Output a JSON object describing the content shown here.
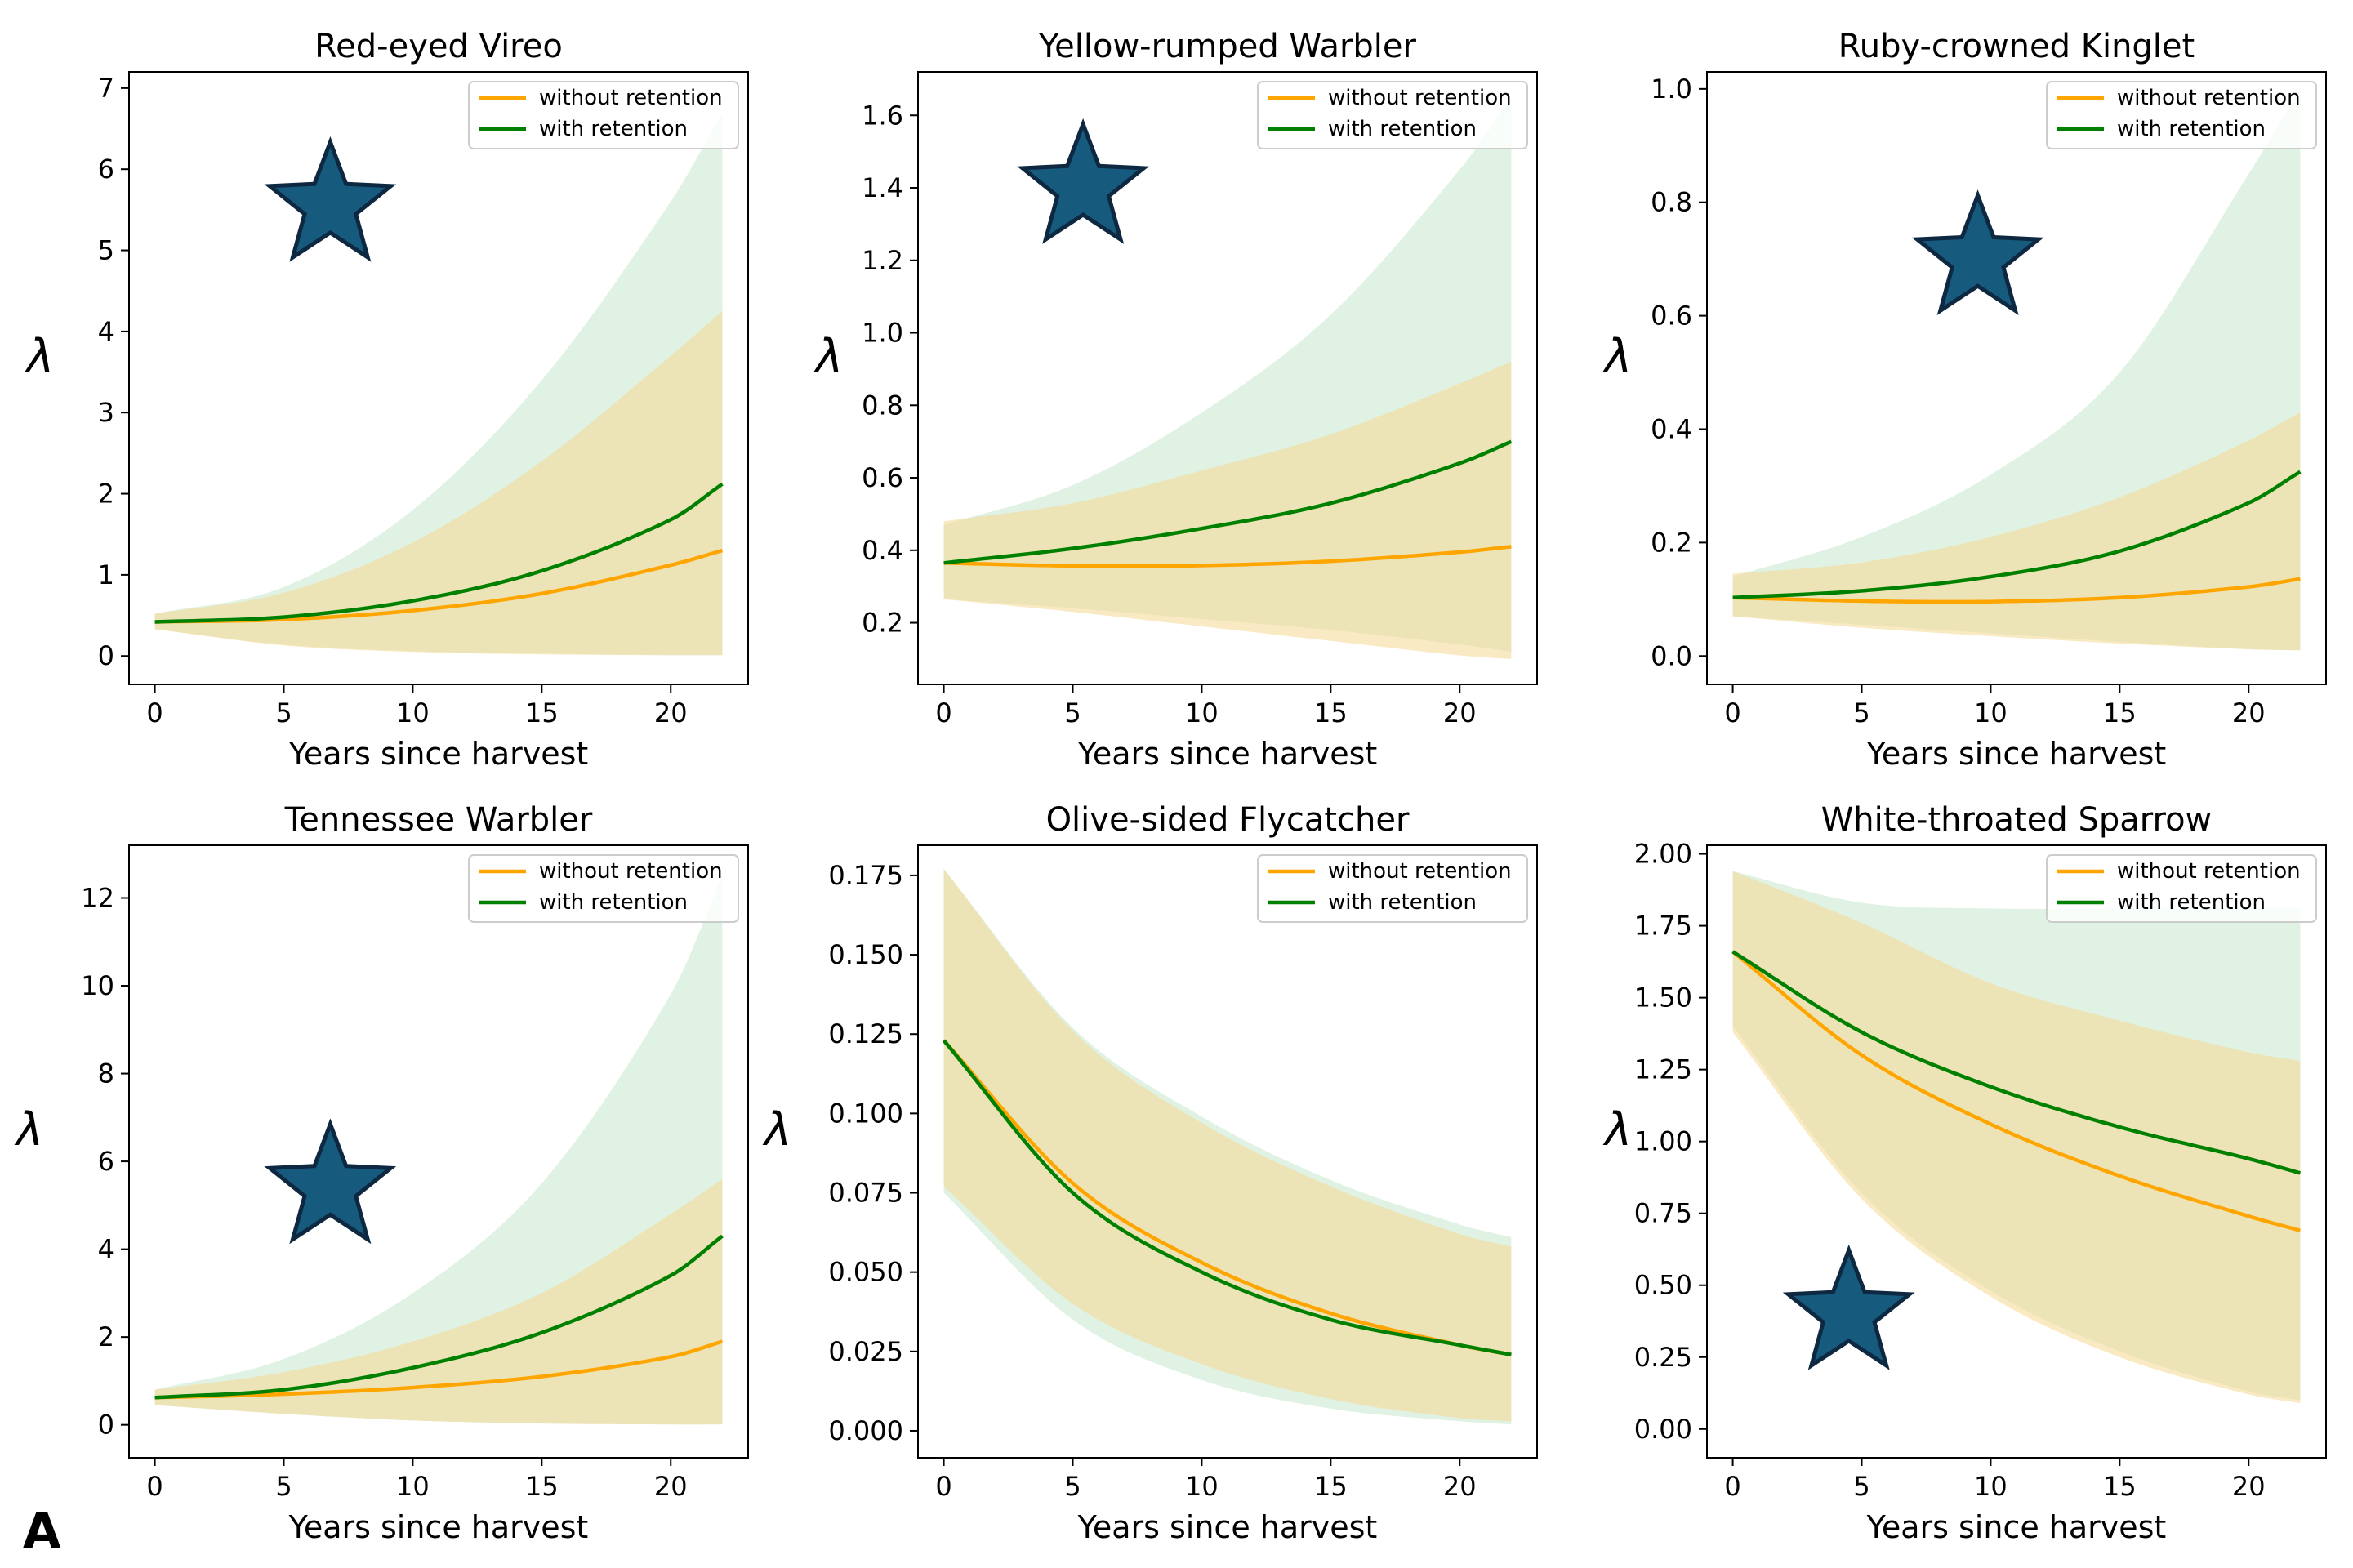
{
  "figure": {
    "panel_letter": "A"
  },
  "legend": {
    "without": "without retention",
    "with": "with retention"
  },
  "colors": {
    "without": "#ffa500",
    "with": "#008000",
    "band_without": "#f5d891",
    "band_with": "#c7e8cc",
    "star_fill": "#165a7e",
    "star_stroke": "#0d2840"
  },
  "chart_data": [
    {
      "type": "line",
      "title": "Red-eyed Vireo",
      "xlabel": "Years since harvest",
      "ylabel": "λ",
      "xlim": [
        -1,
        23
      ],
      "ylim": [
        -0.35,
        7.2
      ],
      "xticks": [
        0,
        5,
        10,
        15,
        20
      ],
      "xtick_labels": [
        "0",
        "5",
        "10",
        "15",
        "20"
      ],
      "yticks": [
        0,
        1,
        2,
        3,
        4,
        5,
        6,
        7
      ],
      "ytick_labels": [
        "0",
        "1",
        "2",
        "3",
        "4",
        "5",
        "6",
        "7"
      ],
      "x": [
        0,
        5,
        10,
        15,
        20,
        22
      ],
      "series": [
        {
          "name": "without retention",
          "key": "without",
          "values": [
            0.42,
            0.45,
            0.56,
            0.77,
            1.12,
            1.3
          ],
          "lower": [
            0.33,
            0.13,
            0.05,
            0.02,
            0.01,
            0.01
          ],
          "upper": [
            0.52,
            0.78,
            1.4,
            2.4,
            3.7,
            4.25
          ]
        },
        {
          "name": "with retention",
          "key": "with",
          "values": [
            0.42,
            0.48,
            0.68,
            1.05,
            1.68,
            2.12
          ],
          "lower": [
            0.33,
            0.14,
            0.06,
            0.03,
            0.01,
            0.01
          ],
          "upper": [
            0.52,
            0.85,
            1.8,
            3.4,
            5.6,
            6.7
          ]
        }
      ],
      "legend_position": "upper right",
      "star": {
        "x": 6.8,
        "y": 5.55
      }
    },
    {
      "type": "line",
      "title": "Yellow-rumped Warbler",
      "xlabel": "Years since harvest",
      "ylabel": "λ",
      "xlim": [
        -1,
        23
      ],
      "ylim": [
        0.03,
        1.72
      ],
      "xticks": [
        0,
        5,
        10,
        15,
        20
      ],
      "xtick_labels": [
        "0",
        "5",
        "10",
        "15",
        "20"
      ],
      "yticks": [
        0.2,
        0.4,
        0.6,
        0.8,
        1.0,
        1.2,
        1.4,
        1.6
      ],
      "ytick_labels": [
        "0.2",
        "0.4",
        "0.6",
        "0.8",
        "1.0",
        "1.2",
        "1.4",
        "1.6"
      ],
      "x": [
        0,
        5,
        10,
        15,
        20,
        22
      ],
      "series": [
        {
          "name": "without retention",
          "key": "without",
          "values": [
            0.365,
            0.357,
            0.358,
            0.37,
            0.395,
            0.41
          ],
          "lower": [
            0.265,
            0.23,
            0.19,
            0.15,
            0.11,
            0.1
          ],
          "upper": [
            0.48,
            0.53,
            0.62,
            0.72,
            0.86,
            0.92
          ]
        },
        {
          "name": "with retention",
          "key": "with",
          "values": [
            0.365,
            0.405,
            0.46,
            0.53,
            0.64,
            0.7
          ],
          "lower": [
            0.265,
            0.24,
            0.21,
            0.18,
            0.14,
            0.12
          ],
          "upper": [
            0.47,
            0.58,
            0.78,
            1.05,
            1.45,
            1.65
          ]
        }
      ],
      "legend_position": "upper right",
      "star": {
        "x": 5.4,
        "y": 1.4
      }
    },
    {
      "type": "line",
      "title": "Ruby-crowned Kinglet",
      "xlabel": "Years since harvest",
      "ylabel": "λ",
      "xlim": [
        -1,
        23
      ],
      "ylim": [
        -0.05,
        1.03
      ],
      "xticks": [
        0,
        5,
        10,
        15,
        20
      ],
      "xtick_labels": [
        "0",
        "5",
        "10",
        "15",
        "20"
      ],
      "yticks": [
        0.0,
        0.2,
        0.4,
        0.6,
        0.8,
        1.0
      ],
      "ytick_labels": [
        "0.0",
        "0.2",
        "0.4",
        "0.6",
        "0.8",
        "1.0"
      ],
      "x": [
        0,
        5,
        10,
        15,
        20,
        22
      ],
      "series": [
        {
          "name": "without retention",
          "key": "without",
          "values": [
            0.103,
            0.097,
            0.096,
            0.103,
            0.122,
            0.136
          ],
          "lower": [
            0.07,
            0.05,
            0.035,
            0.022,
            0.012,
            0.01
          ],
          "upper": [
            0.145,
            0.165,
            0.21,
            0.28,
            0.38,
            0.43
          ]
        },
        {
          "name": "with retention",
          "key": "with",
          "values": [
            0.103,
            0.115,
            0.14,
            0.185,
            0.27,
            0.325
          ],
          "lower": [
            0.07,
            0.055,
            0.04,
            0.025,
            0.012,
            0.01
          ],
          "upper": [
            0.14,
            0.21,
            0.32,
            0.5,
            0.85,
            1.0
          ]
        }
      ],
      "legend_position": "upper right",
      "star": {
        "x": 9.5,
        "y": 0.7
      }
    },
    {
      "type": "line",
      "title": "Tennessee Warbler",
      "xlabel": "Years since harvest",
      "ylabel": "λ",
      "xlim": [
        -1,
        23
      ],
      "ylim": [
        -0.75,
        13.2
      ],
      "xticks": [
        0,
        5,
        10,
        15,
        20
      ],
      "xtick_labels": [
        "0",
        "5",
        "10",
        "15",
        "20"
      ],
      "yticks": [
        0,
        2,
        4,
        6,
        8,
        10,
        12
      ],
      "ytick_labels": [
        "0",
        "2",
        "4",
        "6",
        "8",
        "10",
        "12"
      ],
      "x": [
        0,
        5,
        10,
        15,
        20,
        22
      ],
      "series": [
        {
          "name": "without retention",
          "key": "without",
          "values": [
            0.62,
            0.7,
            0.85,
            1.1,
            1.55,
            1.9
          ],
          "lower": [
            0.45,
            0.25,
            0.1,
            0.03,
            0.01,
            0.01
          ],
          "upper": [
            0.8,
            1.2,
            1.9,
            3.0,
            4.8,
            5.6
          ]
        },
        {
          "name": "with retention",
          "key": "with",
          "values": [
            0.62,
            0.8,
            1.3,
            2.1,
            3.4,
            4.3
          ],
          "lower": [
            0.45,
            0.25,
            0.1,
            0.03,
            0.01,
            0.01
          ],
          "upper": [
            0.8,
            1.5,
            3.0,
            5.5,
            9.8,
            12.5
          ]
        }
      ],
      "legend_position": "upper right",
      "star": {
        "x": 6.8,
        "y": 5.4
      }
    },
    {
      "type": "line",
      "title": "Olive-sided Flycatcher",
      "xlabel": "Years since harvest",
      "ylabel": "λ",
      "xlim": [
        -1,
        23
      ],
      "ylim": [
        -0.0085,
        0.1845
      ],
      "xticks": [
        0,
        5,
        10,
        15,
        20
      ],
      "xtick_labels": [
        "0",
        "5",
        "10",
        "15",
        "20"
      ],
      "yticks": [
        0.0,
        0.025,
        0.05,
        0.075,
        0.1,
        0.125,
        0.15,
        0.175
      ],
      "ytick_labels": [
        "0.000",
        "0.025",
        "0.050",
        "0.075",
        "0.100",
        "0.125",
        "0.150",
        "0.175"
      ],
      "x": [
        0,
        5,
        10,
        15,
        20,
        22
      ],
      "series": [
        {
          "name": "without retention",
          "key": "without",
          "values": [
            0.123,
            0.078,
            0.053,
            0.037,
            0.027,
            0.024
          ],
          "lower": [
            0.077,
            0.04,
            0.021,
            0.01,
            0.004,
            0.003
          ],
          "upper": [
            0.177,
            0.126,
            0.097,
            0.077,
            0.062,
            0.058
          ]
        },
        {
          "name": "with retention",
          "key": "with",
          "values": [
            0.123,
            0.075,
            0.05,
            0.035,
            0.027,
            0.024
          ],
          "lower": [
            0.075,
            0.035,
            0.016,
            0.007,
            0.003,
            0.002
          ],
          "upper": [
            0.177,
            0.127,
            0.099,
            0.079,
            0.065,
            0.061
          ]
        }
      ],
      "legend_position": "upper right"
    },
    {
      "type": "line",
      "title": "White-throated Sparrow",
      "xlabel": "Years since harvest",
      "ylabel": "λ",
      "xlim": [
        -1,
        23
      ],
      "ylim": [
        -0.1,
        2.03
      ],
      "xticks": [
        0,
        5,
        10,
        15,
        20
      ],
      "xtick_labels": [
        "0",
        "5",
        "10",
        "15",
        "20"
      ],
      "yticks": [
        0.0,
        0.25,
        0.5,
        0.75,
        1.0,
        1.25,
        1.5,
        1.75,
        2.0
      ],
      "ytick_labels": [
        "0.00",
        "0.25",
        "0.50",
        "0.75",
        "1.00",
        "1.25",
        "1.50",
        "1.75",
        "2.00"
      ],
      "x": [
        0,
        5,
        10,
        15,
        20,
        22
      ],
      "series": [
        {
          "name": "without retention",
          "key": "without",
          "values": [
            1.66,
            1.3,
            1.06,
            0.88,
            0.74,
            0.69
          ],
          "lower": [
            1.38,
            0.8,
            0.46,
            0.25,
            0.12,
            0.09
          ],
          "upper": [
            1.94,
            1.76,
            1.55,
            1.42,
            1.31,
            1.28
          ]
        },
        {
          "name": "with retention",
          "key": "with",
          "values": [
            1.66,
            1.38,
            1.19,
            1.05,
            0.94,
            0.89
          ],
          "lower": [
            1.4,
            0.82,
            0.48,
            0.27,
            0.13,
            0.1
          ],
          "upper": [
            1.94,
            1.83,
            1.81,
            1.81,
            1.81,
            1.81
          ]
        }
      ],
      "legend_position": "upper right",
      "star": {
        "x": 4.5,
        "y": 0.4
      }
    }
  ]
}
